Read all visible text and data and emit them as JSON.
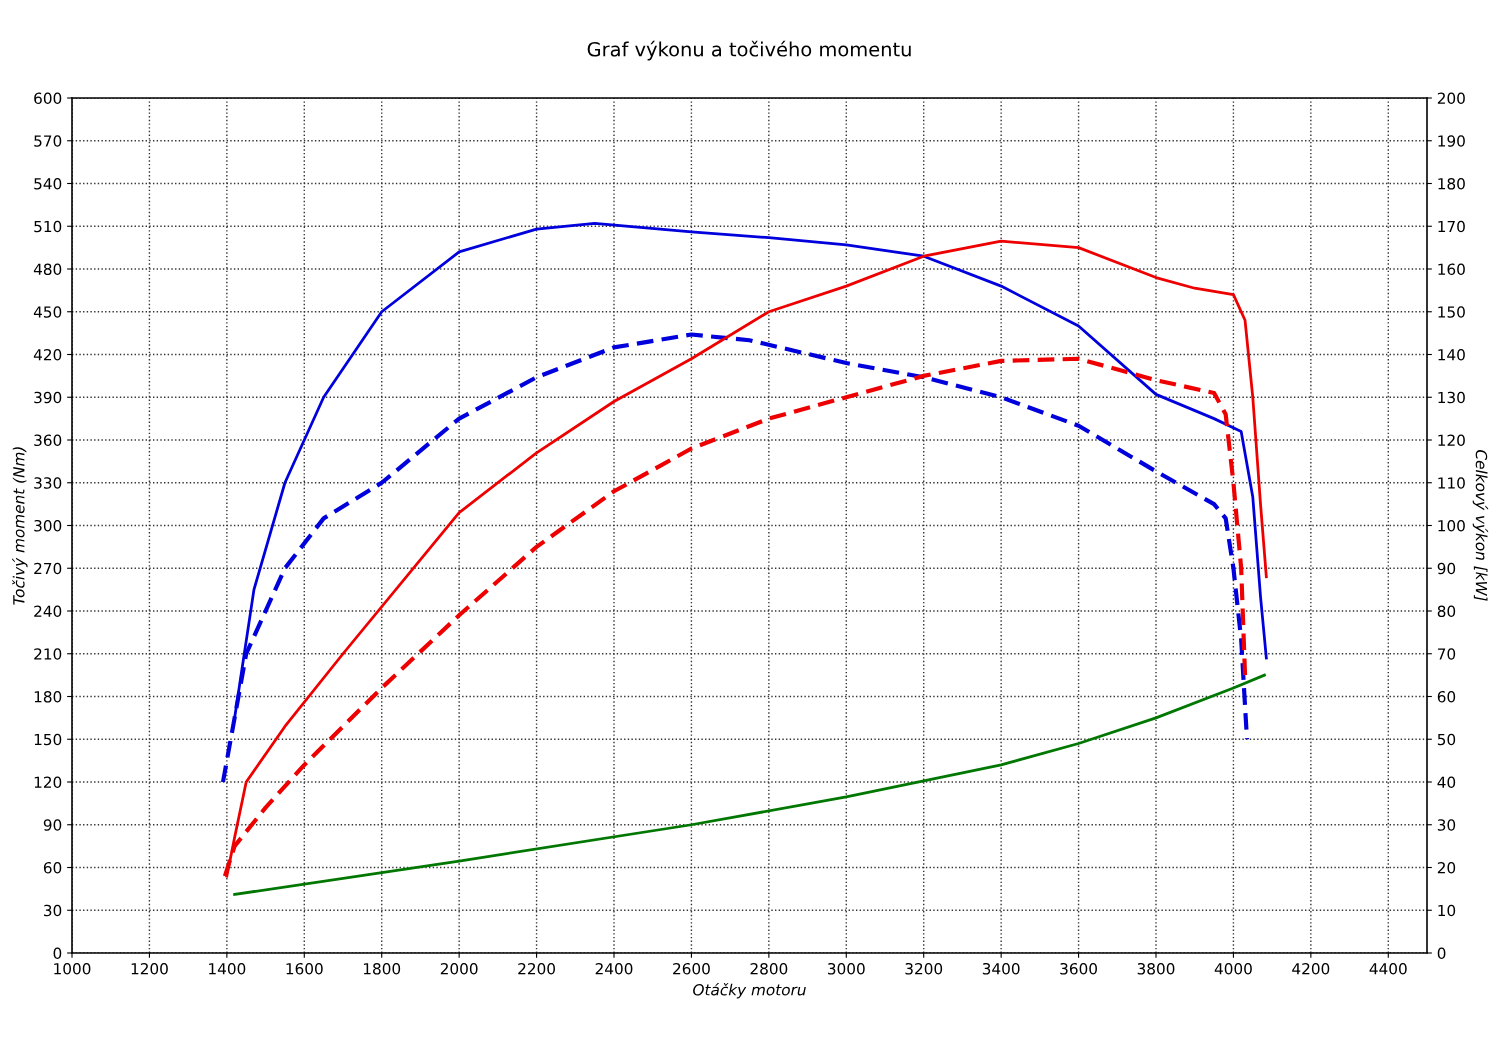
{
  "chart_data": {
    "type": "line",
    "title": "Graf výkonu a točivého momentu",
    "xlabel": "Otáčky motoru",
    "ylabel": "Točivý moment (Nm)",
    "y2label": "Celkový výkon [kW]",
    "xlim": [
      1000,
      4500
    ],
    "xticks": [
      1000,
      1200,
      1400,
      1600,
      1800,
      2000,
      2200,
      2400,
      2600,
      2800,
      3000,
      3200,
      3400,
      3600,
      3800,
      4000,
      4200,
      4400
    ],
    "ylim": [
      0,
      600
    ],
    "yticks": [
      0,
      30,
      60,
      90,
      120,
      150,
      180,
      210,
      240,
      270,
      300,
      330,
      360,
      390,
      420,
      450,
      480,
      510,
      540,
      570,
      600
    ],
    "y2lim": [
      0,
      200
    ],
    "y2ticks": [
      0,
      10,
      20,
      30,
      40,
      50,
      60,
      70,
      80,
      90,
      100,
      110,
      120,
      130,
      140,
      150,
      160,
      170,
      180,
      190,
      200
    ],
    "grid": true,
    "legend": false,
    "series": [
      {
        "color": "#0000dd",
        "line_style": "solid",
        "x": [
          1420,
          1470,
          1550,
          1650,
          1800,
          2000,
          2200,
          2350,
          2600,
          2800,
          3000,
          3200,
          3400,
          3600,
          3800,
          3950,
          4020,
          4050,
          4070,
          4085
        ],
        "values": [
          165,
          255,
          330,
          390,
          450,
          492,
          508,
          512,
          506,
          502,
          497,
          489,
          468,
          440,
          392,
          375,
          366,
          320,
          250,
          207
        ]
      },
      {
        "color": "#0000dd",
        "line_style": "dashed",
        "x": [
          1390,
          1420,
          1450,
          1550,
          1650,
          1800,
          2000,
          2200,
          2400,
          2600,
          2750,
          3000,
          3200,
          3400,
          3600,
          3800,
          3950,
          3980,
          4000,
          4020,
          4035
        ],
        "values": [
          120,
          165,
          210,
          270,
          305,
          330,
          375,
          404,
          425,
          434,
          430,
          414,
          404,
          390,
          370,
          338,
          315,
          305,
          270,
          220,
          150
        ]
      },
      {
        "color": "#ee0000",
        "line_style": "solid",
        "axis": "y2",
        "x": [
          1400,
          1420,
          1450,
          1550,
          1700,
          2000,
          2200,
          2400,
          2600,
          2800,
          3000,
          3200,
          3400,
          3600,
          3800,
          3900,
          4000,
          4030,
          4050,
          4070,
          4085
        ],
        "values": [
          18,
          27,
          40,
          53,
          70,
          103,
          117,
          129,
          139,
          150,
          156,
          163,
          166.5,
          165,
          158,
          155.5,
          154,
          148,
          130,
          105,
          88
        ]
      },
      {
        "color": "#ee0000",
        "line_style": "dashed",
        "axis": "y2",
        "x": [
          1395,
          1420,
          1500,
          1600,
          1800,
          2000,
          2200,
          2400,
          2600,
          2800,
          3000,
          3200,
          3400,
          3600,
          3800,
          3950,
          3980,
          4000,
          4020,
          4030
        ],
        "values": [
          18,
          25,
          34,
          44,
          62,
          79,
          95,
          108,
          118,
          125,
          130,
          135,
          138.5,
          139,
          134,
          131,
          126,
          110,
          90,
          65
        ]
      },
      {
        "color": "#007700",
        "line_style": "solid",
        "axis": "y2",
        "x": [
          1420,
          2000,
          2600,
          3000,
          3400,
          3600,
          3800,
          4000,
          4080
        ],
        "values": [
          13.7,
          21.5,
          30,
          36.5,
          44,
          49,
          55,
          62,
          65
        ]
      }
    ]
  }
}
